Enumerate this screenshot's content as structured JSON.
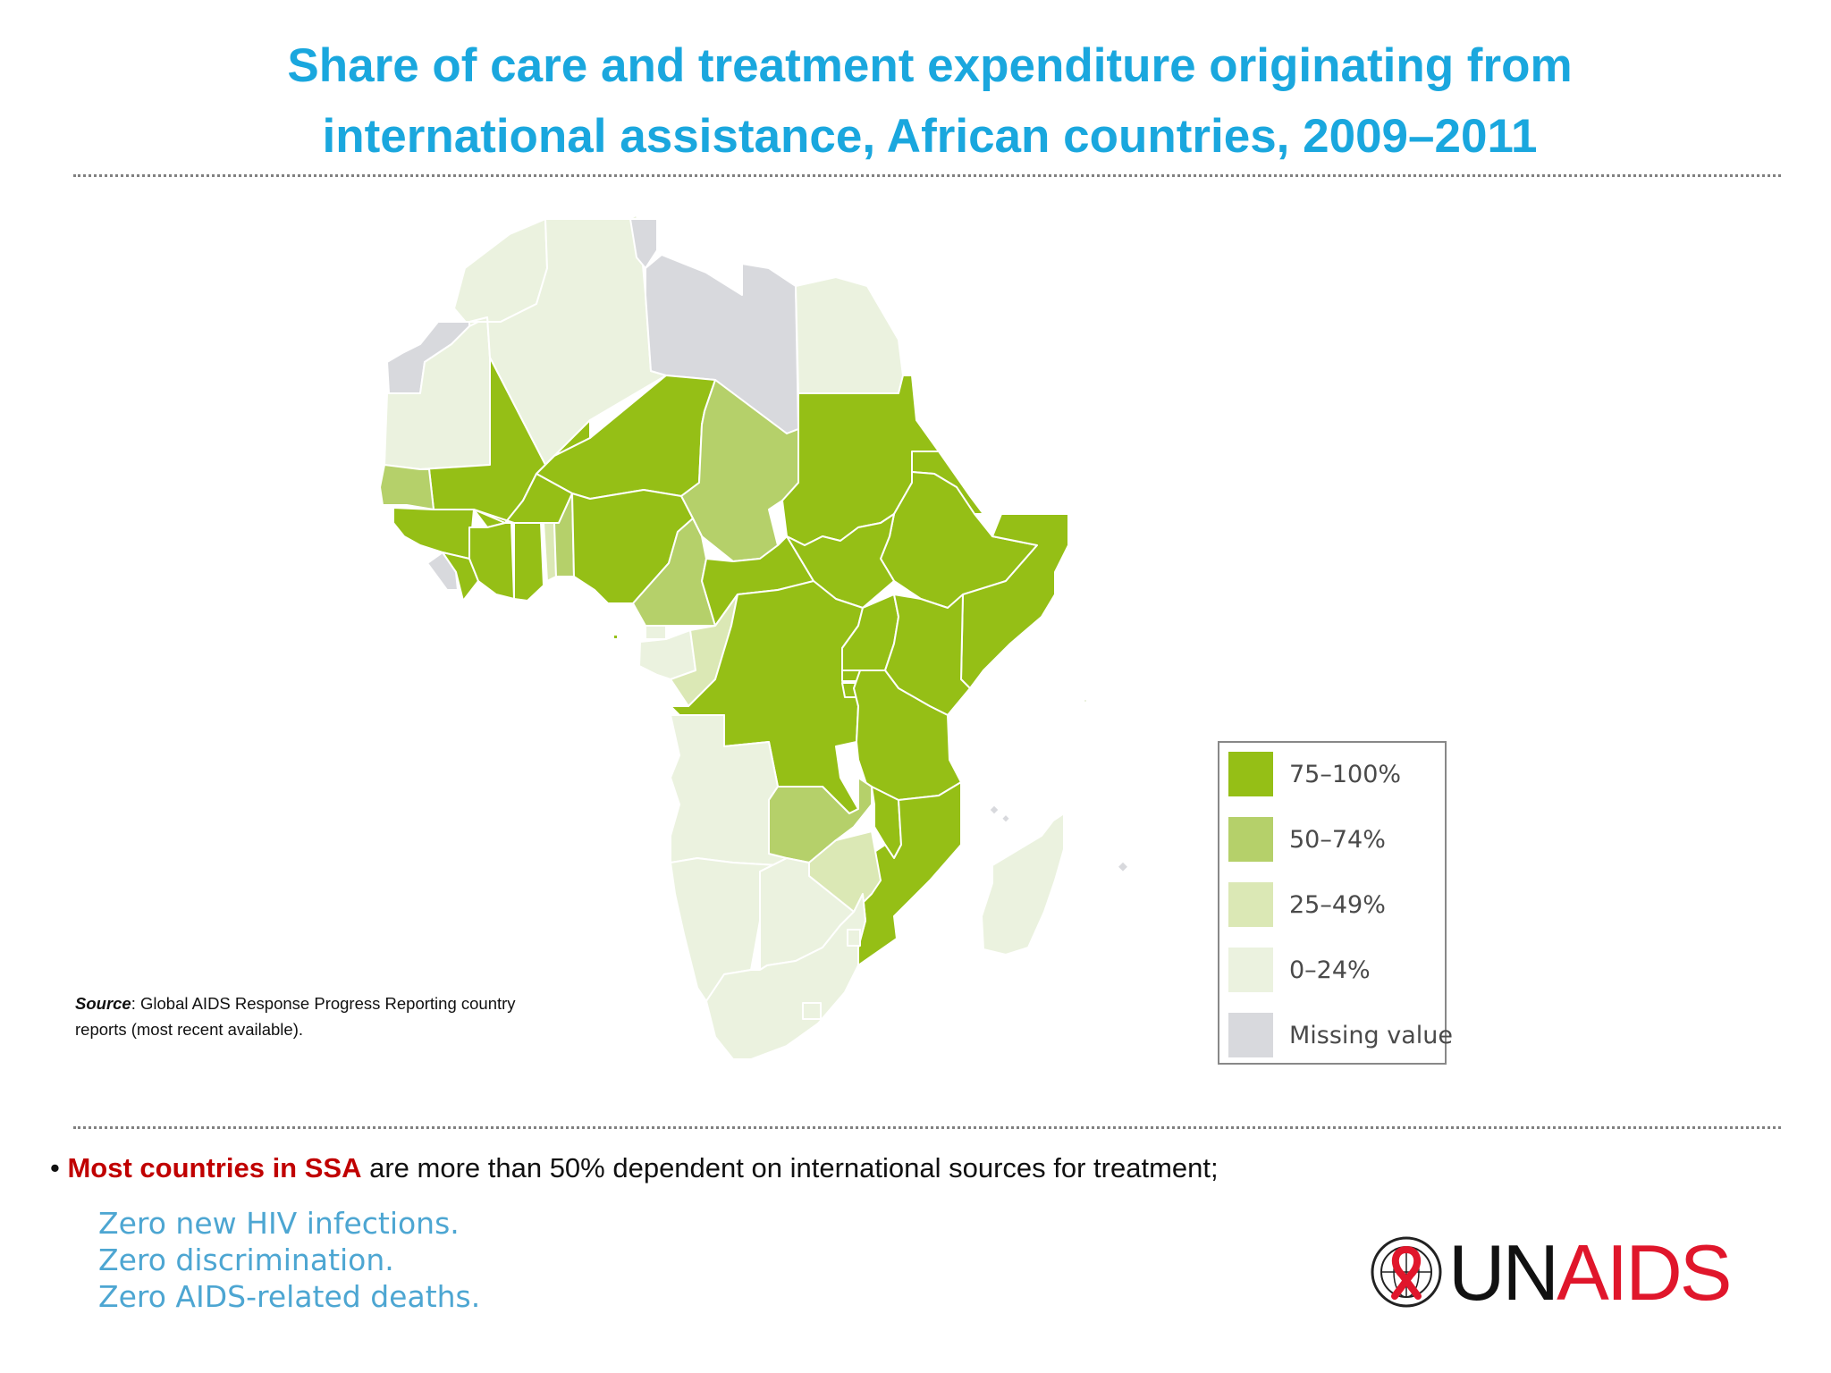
{
  "title_line1": "Share of care and treatment expenditure originating from",
  "title_line2": "international assistance, African countries, 2009–2011",
  "colors": {
    "c75_100": "#95bf16",
    "c50_74": "#b5d06a",
    "c25_49": "#dbe8b5",
    "c0_24": "#ebf2df",
    "missing": "#d8d9dd",
    "title": "#1aa7de",
    "highlight": "#c00000",
    "slogan": "#4da6d2",
    "logo_red": "#e0162b"
  },
  "legend": {
    "items": [
      {
        "label": "75–100%",
        "color": "#95bf16"
      },
      {
        "label": "50–74%",
        "color": "#b5d06a"
      },
      {
        "label": "25–49%",
        "color": "#dbe8b5"
      },
      {
        "label": "0–24%",
        "color": "#ebf2df"
      },
      {
        "label": "Missing value",
        "color": "#d8d9dd"
      }
    ]
  },
  "source": {
    "label": "Source",
    "text": ": Global AIDS Response Progress Reporting country reports (most recent available)."
  },
  "bullet": {
    "marker": "•",
    "highlight": "Most countries in SSA",
    "rest": " are more than 50% dependent on international sources for treatment;"
  },
  "slogans": [
    "Zero new HIV infections.",
    "Zero discrimination.",
    "Zero AIDS-related deaths."
  ],
  "logo": {
    "part1": "UN",
    "part2": "AIDS"
  }
}
